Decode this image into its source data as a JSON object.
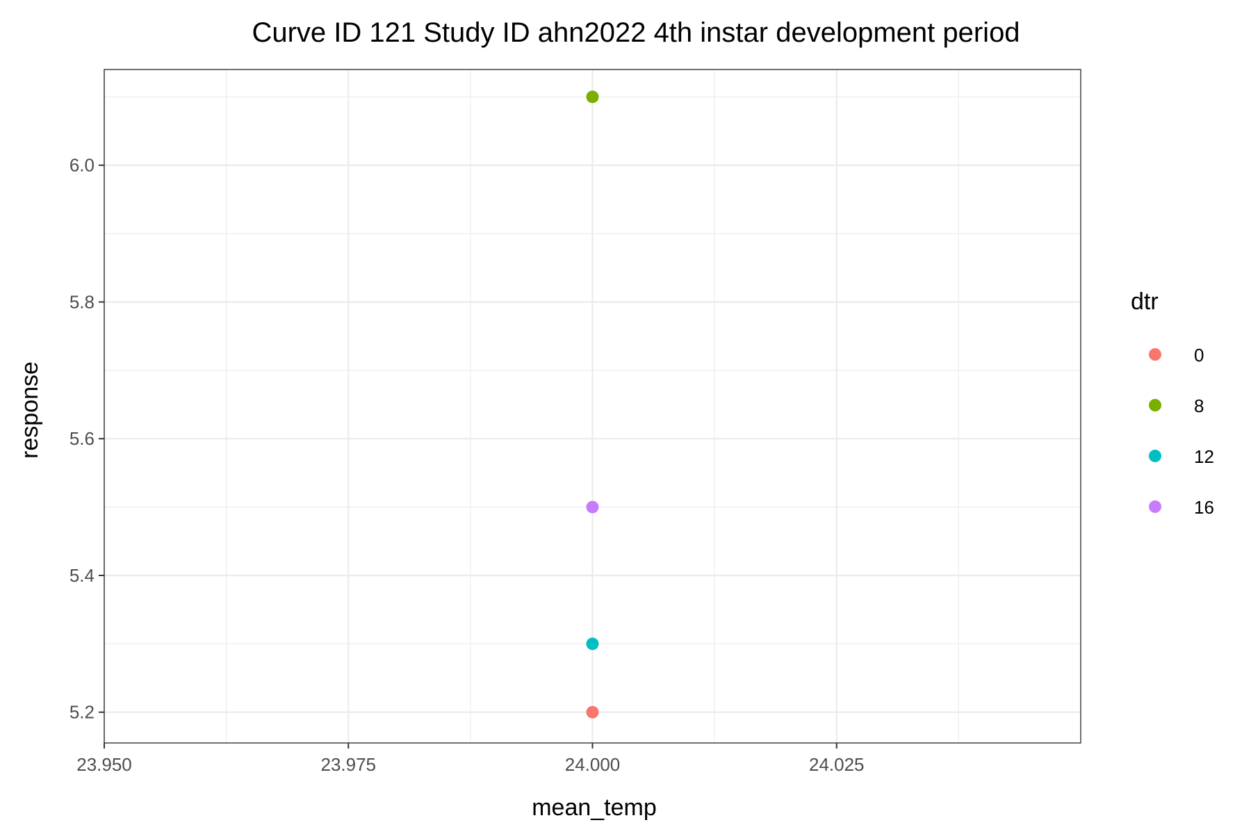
{
  "chart_data": {
    "type": "scatter",
    "title": "Curve ID 121 Study ID ahn2022 4th instar development period",
    "xlabel": "mean_temp",
    "ylabel": "response",
    "xlim": [
      23.95,
      24.05
    ],
    "ylim": [
      5.155,
      6.14
    ],
    "x_ticks": [
      "23.950",
      "23.975",
      "24.000",
      "24.025"
    ],
    "y_ticks": [
      "5.2",
      "5.4",
      "5.6",
      "5.8",
      "6.0"
    ],
    "grid": true,
    "legend": {
      "title": "dtr",
      "position": "right",
      "entries": [
        {
          "label": "0",
          "color": "#F8766D"
        },
        {
          "label": "8",
          "color": "#7CAE00"
        },
        {
          "label": "12",
          "color": "#00BFC4"
        },
        {
          "label": "16",
          "color": "#C77CFF"
        }
      ]
    },
    "series": [
      {
        "name": "0",
        "color": "#F8766D",
        "points": [
          {
            "x": 24.0,
            "y": 5.2
          }
        ]
      },
      {
        "name": "8",
        "color": "#7CAE00",
        "points": [
          {
            "x": 24.0,
            "y": 6.1
          }
        ]
      },
      {
        "name": "12",
        "color": "#00BFC4",
        "points": [
          {
            "x": 24.0,
            "y": 5.3
          }
        ]
      },
      {
        "name": "16",
        "color": "#C77CFF",
        "points": [
          {
            "x": 24.0,
            "y": 5.5
          }
        ]
      }
    ]
  }
}
